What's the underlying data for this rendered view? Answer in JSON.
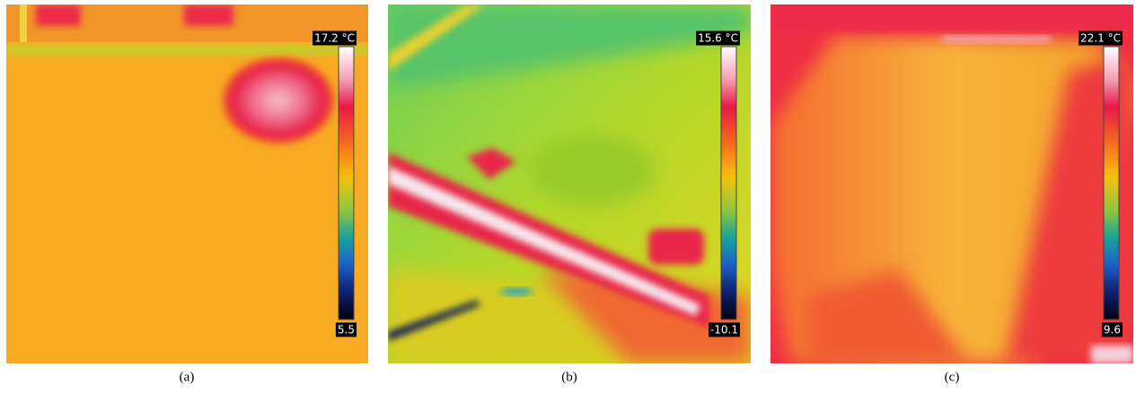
{
  "panels": [
    {
      "scale_max": "17.2 °C",
      "scale_min": "5.5",
      "caption": "(a)"
    },
    {
      "scale_max": "15.6 °C",
      "scale_min": "-10.1",
      "caption": "(b)"
    },
    {
      "scale_max": "22.1 °C",
      "scale_min": "9.6",
      "caption": "(c)"
    }
  ]
}
